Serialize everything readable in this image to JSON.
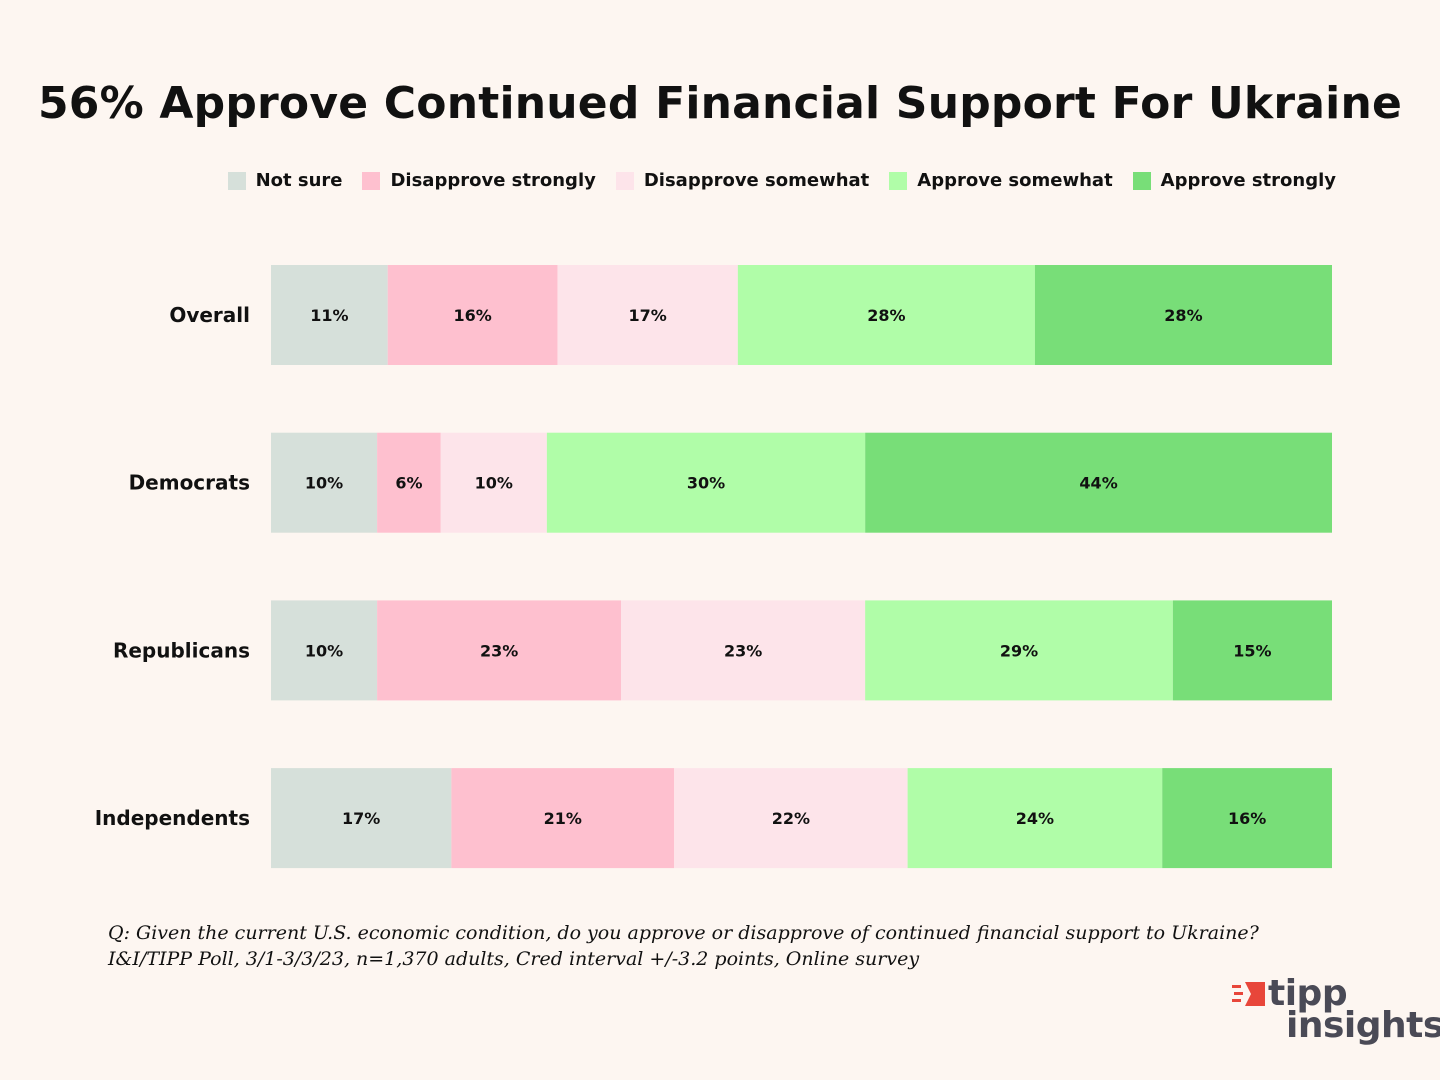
{
  "title": "56% Approve Continued Financial Support For Ukraine",
  "legend": [
    {
      "label": "Not sure",
      "color": "#d6e0da"
    },
    {
      "label": "Disapprove strongly",
      "color": "#fec0cf"
    },
    {
      "label": "Disapprove somewhat",
      "color": "#fde4ea"
    },
    {
      "label": "Approve somewhat",
      "color": "#b0fda8"
    },
    {
      "label": "Approve strongly",
      "color": "#78de78"
    }
  ],
  "chart_data": {
    "type": "bar",
    "orientation": "horizontal",
    "stacked": true,
    "categories": [
      "Overall",
      "Democrats",
      "Republicans",
      "Independents"
    ],
    "series": [
      {
        "name": "Not sure",
        "color": "#d6e0da",
        "values": [
          11,
          10,
          10,
          17
        ]
      },
      {
        "name": "Disapprove strongly",
        "color": "#fec0cf",
        "values": [
          16,
          6,
          23,
          21
        ]
      },
      {
        "name": "Disapprove somewhat",
        "color": "#fde4ea",
        "values": [
          17,
          10,
          23,
          22
        ]
      },
      {
        "name": "Approve somewhat",
        "color": "#b0fda8",
        "values": [
          28,
          30,
          29,
          24
        ]
      },
      {
        "name": "Approve strongly",
        "color": "#78de78",
        "values": [
          28,
          44,
          15,
          16
        ]
      }
    ],
    "value_suffix": "%",
    "legend_position": "top-right",
    "grid": false
  },
  "footnote": {
    "line1": "Q:  Given the current U.S. economic condition, do you approve or disapprove of continued financial support to Ukraine?",
    "line2": "I&I/TIPP Poll, 3/1-3/3/23, n=1,370 adults, Cred interval +/-3.2 points, Online survey"
  },
  "logo": {
    "line1": "tipp",
    "line2": "insights",
    "accent": "#e8463a"
  }
}
